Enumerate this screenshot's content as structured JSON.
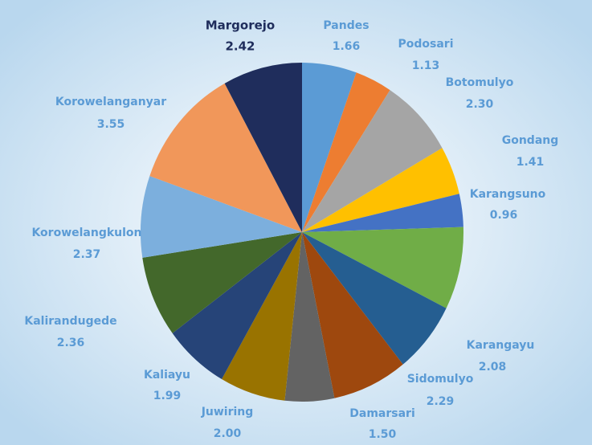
{
  "chart_data": {
    "type": "pie",
    "categories": [
      "Pandes",
      "Podosari",
      "Botomulyo",
      "Gondang",
      "Karangsuno",
      null,
      "Karangayu",
      "Sidomulyo",
      "Damarsari",
      "Juwiring",
      "Kaliayu",
      "Kalirandugede",
      "Korowelangkulon",
      "Korowelanganyar",
      "Margorejo"
    ],
    "values": [
      1.66,
      1.13,
      2.3,
      1.41,
      0.96,
      2.4,
      2.08,
      2.29,
      1.5,
      2.0,
      1.99,
      2.36,
      2.37,
      3.55,
      2.42
    ],
    "value_labels": [
      "1.66",
      "1.13",
      "2.30",
      "1.41",
      "0.96",
      null,
      "2.08",
      "2.29",
      "1.50",
      "2.00",
      "1.99",
      "2.36",
      "2.37",
      "3.55",
      "2.42"
    ],
    "colors": [
      "#5b9bd5",
      "#ed7d31",
      "#a5a5a5",
      "#ffc000",
      "#4472c4",
      "#70ad47",
      "#255e91",
      "#9e480e",
      "#636363",
      "#997300",
      "#264478",
      "#43682b",
      "#7cafdd",
      "#f1975a",
      "#1f2d5c"
    ]
  }
}
